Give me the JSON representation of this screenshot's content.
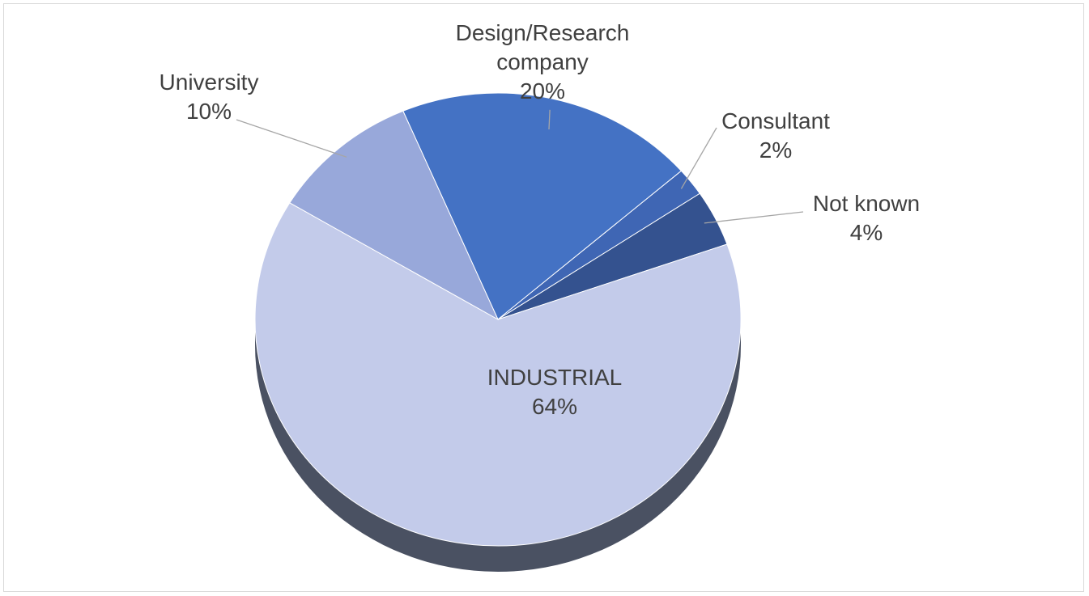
{
  "chart_data": {
    "type": "pie",
    "categories": [
      "Design/Research company",
      "Consultant",
      "Not known",
      "INDUSTRIAL",
      "University"
    ],
    "values": [
      20,
      2,
      4,
      64,
      10
    ],
    "value_labels": [
      "20%",
      "2%",
      "4%",
      "64%",
      "10%"
    ],
    "colors": [
      "#4472c4",
      "#3f66b4",
      "#34528f",
      "#c3cbea",
      "#98a8da"
    ]
  }
}
